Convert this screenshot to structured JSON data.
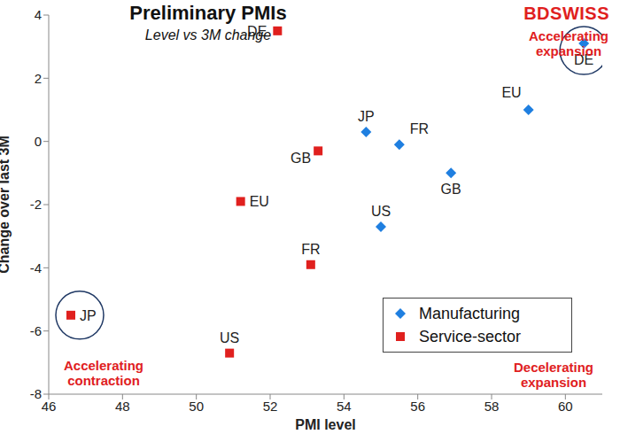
{
  "chart_data": {
    "type": "scatter",
    "title": "Preliminary PMIs",
    "subtitle": "Level vs 3M change",
    "logo": "BDSWISS",
    "xlabel": "PMI level",
    "ylabel": "Change over last 3M",
    "xlim": [
      46,
      61
    ],
    "xticks": [
      46,
      48,
      50,
      52,
      54,
      56,
      58,
      60
    ],
    "ylim": [
      -8,
      4
    ],
    "yticks": [
      -8,
      -6,
      -4,
      -2,
      0,
      2,
      4
    ],
    "grid": false,
    "legend": "bottom right",
    "annotations": {
      "top_right": "Accelerating expansion",
      "bottom_left": "Accelerating contraction",
      "bottom_right": "Decelerating expansion"
    },
    "series": [
      {
        "name": "Manufacturing",
        "color": "#1f7fe0",
        "marker": "diamond",
        "labels": [
          "JP",
          "FR",
          "GB",
          "US",
          "EU",
          "DE"
        ],
        "x": [
          54.6,
          55.5,
          56.9,
          55.0,
          59.0,
          60.5
        ],
        "values": [
          0.3,
          -0.1,
          -1.0,
          -2.7,
          1.0,
          3.1
        ],
        "highlight": "DE"
      },
      {
        "name": "Service-sector",
        "color": "#e0201e",
        "marker": "square",
        "labels": [
          "DE",
          "GB",
          "EU",
          "FR",
          "US",
          "JP"
        ],
        "x": [
          52.2,
          53.3,
          51.2,
          53.1,
          50.9,
          46.6
        ],
        "values": [
          3.5,
          -0.3,
          -1.9,
          -3.9,
          -6.7,
          -5.5
        ],
        "highlight": "JP"
      }
    ]
  }
}
